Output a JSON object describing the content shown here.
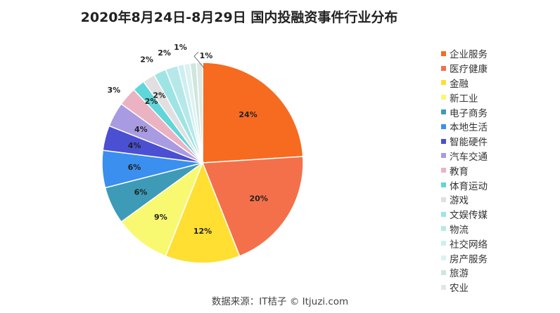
{
  "chart_data": {
    "type": "pie",
    "title": "2020年8月24日-8月29日 国内投融资事件行业分布",
    "source": "数据来源：IT桔子 © Itjuzi.com",
    "legend_position": "right",
    "slices": [
      {
        "label": "企业服务",
        "value": 24,
        "display": "24%",
        "color": "#F76B20"
      },
      {
        "label": "医疗健康",
        "value": 20,
        "display": "20%",
        "color": "#F4704A"
      },
      {
        "label": "金融",
        "value": 12,
        "display": "12%",
        "color": "#FEDF32"
      },
      {
        "label": "新工业",
        "value": 9,
        "display": "9%",
        "color": "#F9F871"
      },
      {
        "label": "电子商务",
        "value": 6,
        "display": "6%",
        "color": "#3E9BB7"
      },
      {
        "label": "本地生活",
        "value": 6,
        "display": "6%",
        "color": "#3A8FEF"
      },
      {
        "label": "智能硬件",
        "value": 4,
        "display": "4%",
        "color": "#4B4FD2"
      },
      {
        "label": "汽车交通",
        "value": 4,
        "display": "4%",
        "color": "#A99BE2"
      },
      {
        "label": "教育",
        "value": 3,
        "display": "3%",
        "color": "#EBB3C2"
      },
      {
        "label": "体育运动",
        "value": 2,
        "display": "2%",
        "color": "#5FD6DA"
      },
      {
        "label": "游戏",
        "value": 2,
        "display": "2%",
        "color": "#E2DFE0"
      },
      {
        "label": "文娱传媒",
        "value": 2,
        "display": "2%",
        "color": "#9FE4E5"
      },
      {
        "label": "物流",
        "value": 2,
        "display": "2%",
        "color": "#B6E8EA"
      },
      {
        "label": "社交网络",
        "value": 1,
        "display": "1%",
        "color": "#CDEFF1"
      },
      {
        "label": "房产服务",
        "value": 1,
        "display": "1%",
        "color": "#DDF1F2"
      },
      {
        "label": "旅游",
        "value": 1,
        "display": "1%",
        "color": "#CFE6DD"
      },
      {
        "label": "农业",
        "value": 1,
        "display": "1%",
        "color": "#E0E8E4"
      }
    ]
  }
}
